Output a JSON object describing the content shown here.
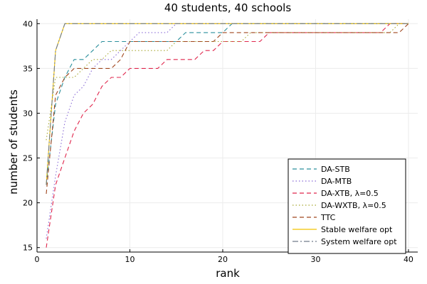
{
  "chart_data": {
    "type": "line",
    "title": "40 students, 40 schools",
    "xlabel": "rank",
    "ylabel": "number of students",
    "xlim": [
      0,
      41
    ],
    "ylim": [
      14.5,
      40.5
    ],
    "xticks": [
      0,
      10,
      20,
      30,
      40
    ],
    "yticks": [
      15,
      20,
      25,
      30,
      35,
      40
    ],
    "grid": true,
    "legend_position": "bottom-right",
    "series": [
      {
        "name": "DA-STB",
        "color": "#2a8f9c",
        "dash": "dash",
        "x": [
          1,
          2,
          3,
          4,
          5,
          6,
          7,
          8,
          9,
          10,
          11,
          12,
          13,
          14,
          15,
          16,
          17,
          18,
          19,
          20,
          21,
          22,
          23,
          24,
          25,
          26,
          27,
          28,
          29,
          30,
          31,
          32,
          33,
          34,
          35,
          36,
          37,
          38,
          39,
          40
        ],
        "y": [
          22,
          31,
          34,
          36,
          36,
          37,
          38,
          38,
          38,
          38,
          38,
          38,
          38,
          38,
          38,
          39,
          39,
          39,
          39,
          39,
          40,
          40,
          40,
          40,
          40,
          40,
          40,
          40,
          40,
          40,
          40,
          40,
          40,
          40,
          40,
          40,
          40,
          40,
          40,
          40
        ]
      },
      {
        "name": "DA-MTB",
        "color": "#8a6bd6",
        "dash": "dot",
        "x": [
          1,
          2,
          3,
          4,
          5,
          6,
          7,
          8,
          9,
          10,
          11,
          12,
          13,
          14,
          15,
          16,
          17,
          18,
          19,
          20,
          21,
          22,
          23,
          24,
          25,
          26,
          27,
          28,
          29,
          30,
          31,
          32,
          33,
          34,
          35,
          36,
          37,
          38,
          39,
          40
        ],
        "y": [
          16,
          23,
          29,
          32,
          33,
          35,
          36,
          36,
          37,
          38,
          39,
          39,
          39,
          39,
          40,
          40,
          40,
          40,
          40,
          40,
          40,
          40,
          40,
          40,
          40,
          40,
          40,
          40,
          40,
          40,
          40,
          40,
          40,
          40,
          40,
          40,
          40,
          40,
          40,
          40
        ]
      },
      {
        "name": "DA-XTB, λ=0.5",
        "color": "#e0264c",
        "dash": "dash",
        "x": [
          1,
          2,
          3,
          4,
          5,
          6,
          7,
          8,
          9,
          10,
          11,
          12,
          13,
          14,
          15,
          16,
          17,
          18,
          19,
          20,
          21,
          22,
          23,
          24,
          25,
          26,
          27,
          28,
          29,
          30,
          31,
          32,
          33,
          34,
          35,
          36,
          37,
          38,
          39,
          40
        ],
        "y": [
          15,
          22,
          25,
          28,
          30,
          31,
          33,
          34,
          34,
          35,
          35,
          35,
          35,
          36,
          36,
          36,
          36,
          37,
          37,
          38,
          38,
          38,
          38,
          38,
          39,
          39,
          39,
          39,
          39,
          39,
          39,
          39,
          39,
          39,
          39,
          39,
          39,
          40,
          40,
          40
        ]
      },
      {
        "name": "DA-WXTB, λ=0.5",
        "color": "#a8a832",
        "dash": "dot",
        "x": [
          1,
          2,
          3,
          4,
          5,
          6,
          7,
          8,
          9,
          10,
          11,
          12,
          13,
          14,
          15,
          16,
          17,
          18,
          19,
          20,
          21,
          22,
          23,
          24,
          25,
          26,
          27,
          28,
          29,
          30,
          31,
          32,
          33,
          34,
          35,
          36,
          37,
          38,
          39,
          40
        ],
        "y": [
          27,
          34,
          34,
          34,
          35,
          36,
          36,
          37,
          37,
          37,
          37,
          37,
          37,
          37,
          38,
          38,
          38,
          38,
          38,
          38,
          38,
          38,
          39,
          39,
          39,
          39,
          39,
          39,
          39,
          39,
          39,
          39,
          39,
          39,
          39,
          39,
          39,
          39,
          40,
          40
        ]
      },
      {
        "name": "TTC",
        "color": "#a0461e",
        "dash": "dash",
        "x": [
          1,
          2,
          3,
          4,
          5,
          6,
          7,
          8,
          9,
          10,
          11,
          12,
          13,
          14,
          15,
          16,
          17,
          18,
          19,
          20,
          21,
          22,
          23,
          24,
          25,
          26,
          27,
          28,
          29,
          30,
          31,
          32,
          33,
          34,
          35,
          36,
          37,
          38,
          39,
          40
        ],
        "y": [
          21,
          32,
          34,
          35,
          35,
          35,
          35,
          35,
          36,
          38,
          38,
          38,
          38,
          38,
          38,
          38,
          38,
          38,
          38,
          39,
          39,
          39,
          39,
          39,
          39,
          39,
          39,
          39,
          39,
          39,
          39,
          39,
          39,
          39,
          39,
          39,
          39,
          39,
          39,
          40
        ]
      },
      {
        "name": "Stable welfare opt",
        "color": "#f2c200",
        "dash": "solid",
        "x": [
          1,
          2,
          3,
          4,
          5,
          6,
          7,
          8,
          9,
          10,
          11,
          12,
          13,
          14,
          15,
          16,
          17,
          18,
          19,
          20,
          21,
          22,
          23,
          24,
          25,
          26,
          27,
          28,
          29,
          30,
          31,
          32,
          33,
          34,
          35,
          36,
          37,
          38,
          39,
          40
        ],
        "y": [
          22,
          37,
          40,
          40,
          40,
          40,
          40,
          40,
          40,
          40,
          40,
          40,
          40,
          40,
          40,
          40,
          40,
          40,
          40,
          40,
          40,
          40,
          40,
          40,
          40,
          40,
          40,
          40,
          40,
          40,
          40,
          40,
          40,
          40,
          40,
          40,
          40,
          40,
          40,
          40
        ]
      },
      {
        "name": "System welfare opt",
        "color": "#707c8a",
        "dash": "dashdot",
        "x": [
          1,
          2,
          3,
          4,
          5,
          6,
          7,
          8,
          9,
          10,
          11,
          12,
          13,
          14,
          15,
          16,
          17,
          18,
          19,
          20,
          21,
          22,
          23,
          24,
          25,
          26,
          27,
          28,
          29,
          30,
          31,
          32,
          33,
          34,
          35,
          36,
          37,
          38,
          39,
          40
        ],
        "y": [
          22,
          37,
          40,
          40,
          40,
          40,
          40,
          40,
          40,
          40,
          40,
          40,
          40,
          40,
          40,
          40,
          40,
          40,
          40,
          40,
          40,
          40,
          40,
          40,
          40,
          40,
          40,
          40,
          40,
          40,
          40,
          40,
          40,
          40,
          40,
          40,
          40,
          40,
          40,
          40
        ]
      }
    ]
  }
}
